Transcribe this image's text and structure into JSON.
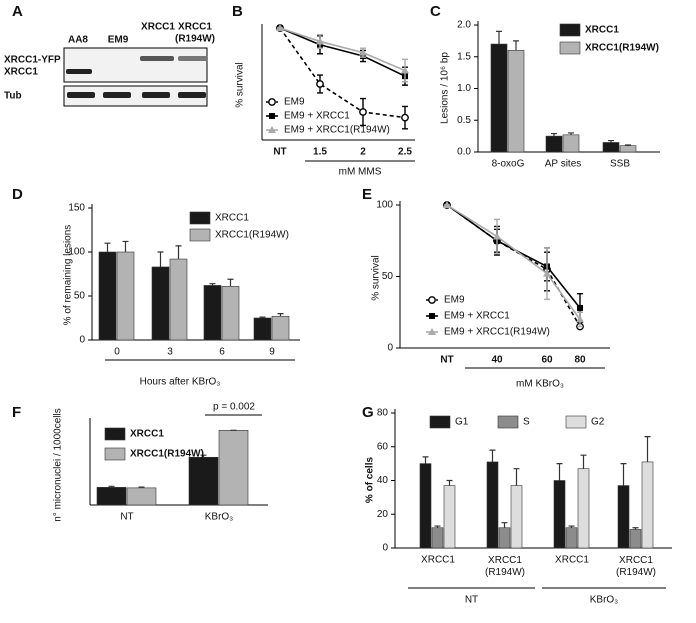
{
  "blot": {
    "panel": "A",
    "lanes": [
      "AA8",
      "EM9",
      "XRCC1",
      [
        "XRCC1",
        "(R194W)"
      ]
    ],
    "rows": [
      "XRCC1-YFP",
      "XRCC1",
      "Tub"
    ]
  },
  "chart_data": [
    {
      "type": "line",
      "panel": "B",
      "y_label": "% survival",
      "x_label": "mM MMS",
      "categories": [
        "NT",
        "1.5",
        "2",
        "2.5"
      ],
      "ylim": [
        0,
        100
      ],
      "legend": "lower left",
      "series": [
        {
          "name": "EM9",
          "color": "#000000",
          "style": "dashed",
          "marker": "open-circle",
          "values": [
            100,
            50,
            25,
            20
          ],
          "errors": [
            0,
            8,
            12,
            10
          ]
        },
        {
          "name": "EM9 + XRCC1",
          "color": "#000000",
          "style": "solid",
          "marker": "square",
          "values": [
            100,
            85,
            75,
            57
          ],
          "errors": [
            0,
            8,
            5,
            8
          ]
        },
        {
          "name": "EM9 + XRCC1(R194W)",
          "color": "#aaaaaa",
          "style": "solid",
          "marker": "triangle",
          "values": [
            100,
            88,
            78,
            62
          ],
          "errors": [
            0,
            6,
            4,
            10
          ]
        }
      ]
    },
    {
      "type": "bar",
      "panel": "C",
      "y_label": "Lesions / 10⁶ bp",
      "categories": [
        "8-oxoG",
        "AP sites",
        "SSB"
      ],
      "ylim": [
        0,
        2.0
      ],
      "yticks": [
        {
          "value": 0,
          "label": "0.0"
        },
        0.5,
        {
          "value": 1,
          "label": "1.0"
        },
        1.5,
        {
          "value": 2,
          "label": "2.0"
        }
      ],
      "legend": "upper right",
      "legend_bold": true,
      "series": [
        {
          "name": "XRCC1",
          "color": "#1a1a1a",
          "values": [
            1.7,
            0.25,
            0.15
          ],
          "errors": [
            0.2,
            0.04,
            0.03
          ]
        },
        {
          "name": "XRCC1(R194W)",
          "color": "#b3b3b3",
          "values": [
            1.6,
            0.27,
            0.1
          ],
          "errors": [
            0.15,
            0.03,
            0.01
          ]
        }
      ]
    },
    {
      "type": "bar",
      "panel": "D",
      "y_label": "% of remaining lesions",
      "x_label": "Hours after KBrO₃",
      "categories": [
        "0",
        "3",
        "6",
        "9"
      ],
      "ylim": [
        0,
        150
      ],
      "yticks": [
        0,
        50,
        100,
        150
      ],
      "legend": "upper right",
      "series": [
        {
          "name": "XRCC1",
          "color": "#1a1a1a",
          "values": [
            100,
            83,
            62,
            25
          ],
          "errors": [
            10,
            17,
            2,
            1
          ]
        },
        {
          "name": "XRCC1(R194W)",
          "color": "#b3b3b3",
          "values": [
            100,
            92,
            61,
            27
          ],
          "errors": [
            12,
            15,
            8,
            3
          ]
        }
      ]
    },
    {
      "type": "line",
      "panel": "E",
      "y_label": "% survival",
      "x_label": "mM KBrO₃",
      "categories": [
        "NT",
        "40",
        "60",
        "80"
      ],
      "ylim": [
        0,
        100
      ],
      "yticks": [
        0,
        50,
        100
      ],
      "legend": "lower left",
      "series": [
        {
          "name": "EM9",
          "color": "#000000",
          "style": "dashed",
          "marker": "open-circle",
          "values": [
            100,
            75,
            55,
            15
          ],
          "errors": [
            0,
            8,
            15,
            0
          ]
        },
        {
          "name": "EM9 + XRCC1",
          "color": "#000000",
          "style": "solid",
          "marker": "square",
          "values": [
            100,
            75,
            57,
            28
          ],
          "errors": [
            0,
            10,
            10,
            10
          ]
        },
        {
          "name": "EM9 + XRCC1(R194W)",
          "color": "#aaaaaa",
          "style": "solid",
          "marker": "triangle",
          "values": [
            100,
            78,
            52,
            20
          ],
          "errors": [
            0,
            12,
            18,
            5
          ]
        }
      ]
    },
    {
      "type": "bar",
      "panel": "F",
      "y_label": "n° micronuclei / 1000cells",
      "categories": [
        "NT",
        "KBrO₃"
      ],
      "ylim": [
        0,
        80
      ],
      "legend": "upper left",
      "legend_bold": true,
      "annotation": "p = 0.002",
      "series": [
        {
          "name": "XRCC1",
          "color": "#1a1a1a",
          "values": [
            17,
            46
          ],
          "errors": [
            1,
            2
          ]
        },
        {
          "name": "XRCC1(R194W)",
          "color": "#b3b3b3",
          "values": [
            16.5,
            72
          ],
          "errors": [
            0.8,
            0
          ]
        }
      ]
    },
    {
      "type": "bar",
      "panel": "G",
      "y_label": "% of cells",
      "categories": [
        "XRCC1",
        [
          "XRCC1",
          "(R194W)"
        ],
        "XRCC1",
        [
          "XRCC1",
          "(R194W)"
        ]
      ],
      "group_labels": [
        "NT",
        "KBrO₃"
      ],
      "ylim": [
        0,
        80
      ],
      "yticks": [
        0,
        20,
        40,
        60,
        80
      ],
      "legend": "top",
      "series": [
        {
          "name": "G1",
          "color": "#1a1a1a",
          "values": [
            50,
            51,
            40,
            37
          ],
          "errors": [
            4,
            7,
            10,
            13
          ]
        },
        {
          "name": "S",
          "color": "#8c8c8c",
          "values": [
            12,
            12,
            12,
            11
          ],
          "errors": [
            1,
            3,
            1,
            1
          ]
        },
        {
          "name": "G2",
          "color": "#dddddd",
          "values": [
            37,
            37,
            47,
            51
          ],
          "errors": [
            3,
            10,
            8,
            15
          ]
        }
      ]
    }
  ]
}
